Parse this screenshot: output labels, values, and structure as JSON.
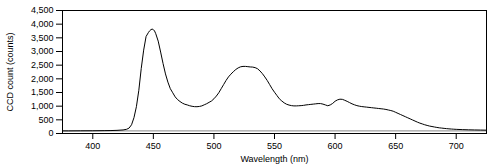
{
  "chart_data": {
    "type": "line",
    "xlabel": "Wavelength (nm)",
    "ylabel": "CCD count (counts)",
    "color": "#000000",
    "xlim": [
      375,
      725
    ],
    "ylim": [
      0,
      4500
    ],
    "xticks": [
      400,
      450,
      500,
      550,
      600,
      650,
      700
    ],
    "yticks": [
      0,
      500,
      {
        "value": 1000,
        "label": "1,000"
      },
      {
        "value": 1500,
        "label": "1,500"
      },
      {
        "value": 2000,
        "label": "2,000"
      },
      {
        "value": 2500,
        "label": "2,500"
      },
      {
        "value": 3000,
        "label": "3,000"
      },
      {
        "value": 3500,
        "label": "3,500"
      },
      {
        "value": 4000,
        "label": "4,000"
      },
      {
        "value": 4500,
        "label": "4,500"
      }
    ],
    "hline": {
      "value": 95,
      "color": "#888888"
    },
    "x": [
      375,
      380,
      390,
      400,
      410,
      415,
      420,
      425,
      428,
      430,
      432,
      434,
      436,
      438,
      440,
      442,
      444,
      446,
      447,
      448,
      449,
      450,
      451,
      452,
      454,
      456,
      458,
      460,
      462,
      464,
      466,
      468,
      470,
      472,
      474,
      476,
      478,
      480,
      482,
      484,
      486,
      488,
      490,
      492,
      494,
      496,
      498,
      500,
      502,
      504,
      506,
      508,
      510,
      512,
      514,
      516,
      518,
      520,
      522,
      524,
      526,
      528,
      530,
      532,
      534,
      536,
      538,
      540,
      542,
      544,
      546,
      548,
      550,
      552,
      554,
      556,
      558,
      560,
      562,
      564,
      566,
      568,
      570,
      572,
      574,
      576,
      578,
      580,
      582,
      584,
      586,
      588,
      590,
      592,
      594,
      596,
      598,
      600,
      602,
      604,
      606,
      608,
      610,
      612,
      614,
      616,
      618,
      620,
      622,
      624,
      626,
      628,
      630,
      632,
      634,
      636,
      638,
      640,
      642,
      644,
      646,
      648,
      650,
      652,
      654,
      656,
      658,
      660,
      662,
      664,
      666,
      668,
      670,
      672,
      674,
      676,
      678,
      680,
      682,
      684,
      686,
      688,
      690,
      692,
      694,
      696,
      698,
      700,
      705,
      710,
      715,
      720,
      725
    ],
    "values": [
      95,
      95,
      98,
      100,
      105,
      108,
      115,
      130,
      155,
      200,
      320,
      580,
      980,
      1580,
      2380,
      3050,
      3550,
      3700,
      3760,
      3800,
      3820,
      3800,
      3750,
      3650,
      3380,
      2980,
      2560,
      2180,
      1880,
      1640,
      1490,
      1340,
      1240,
      1170,
      1110,
      1070,
      1045,
      1015,
      995,
      982,
      980,
      990,
      1010,
      1050,
      1090,
      1140,
      1190,
      1270,
      1370,
      1490,
      1640,
      1790,
      1940,
      2070,
      2170,
      2260,
      2340,
      2400,
      2440,
      2455,
      2455,
      2445,
      2435,
      2430,
      2410,
      2370,
      2290,
      2190,
      2070,
      1940,
      1790,
      1640,
      1510,
      1390,
      1270,
      1190,
      1120,
      1070,
      1040,
      1020,
      1010,
      1010,
      1015,
      1020,
      1030,
      1045,
      1055,
      1065,
      1075,
      1085,
      1095,
      1095,
      1075,
      1045,
      1015,
      1045,
      1100,
      1180,
      1230,
      1255,
      1250,
      1215,
      1175,
      1130,
      1085,
      1050,
      1020,
      1000,
      985,
      975,
      965,
      955,
      945,
      935,
      925,
      915,
      905,
      895,
      880,
      860,
      840,
      815,
      775,
      735,
      695,
      655,
      615,
      575,
      535,
      495,
      455,
      415,
      380,
      350,
      320,
      295,
      272,
      255,
      238,
      222,
      208,
      198,
      188,
      178,
      170,
      163,
      157,
      152,
      142,
      135,
      130,
      126,
      122
    ]
  }
}
